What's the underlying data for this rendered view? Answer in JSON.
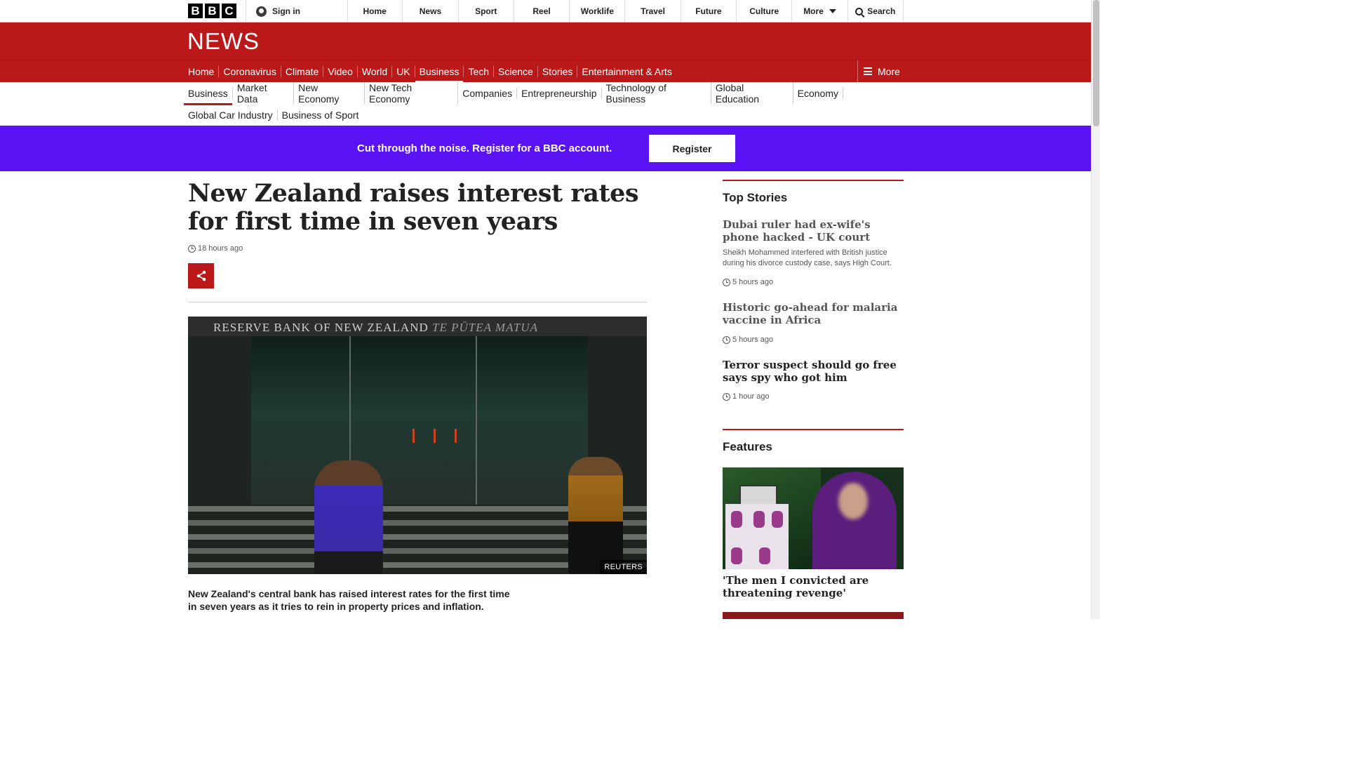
{
  "global_nav": {
    "logo_letters": [
      "B",
      "B",
      "C"
    ],
    "sign_in": "Sign in",
    "items": [
      "Home",
      "News",
      "Sport",
      "Reel",
      "Worklife",
      "Travel",
      "Future",
      "Culture"
    ],
    "more": "More",
    "search": "Search"
  },
  "news": {
    "wordmark": "NEWS",
    "brand_color": "#bb1919",
    "sections": [
      "Home",
      "Coronavirus",
      "Climate",
      "Video",
      "World",
      "UK",
      "Business",
      "Tech",
      "Science",
      "Stories",
      "Entertainment & Arts"
    ],
    "active_section": "Business",
    "more": "More"
  },
  "sub_nav": {
    "row1": [
      "Business",
      "Market Data",
      "New Economy",
      "New Tech Economy",
      "Companies",
      "Entrepreneurship",
      "Technology of Business",
      "Global Education",
      "Economy"
    ],
    "row2": [
      "Global Car Industry",
      "Business of Sport"
    ],
    "active": "Business"
  },
  "promo": {
    "text": "Cut through the noise. Register for a BBC account.",
    "button": "Register",
    "color": "#5a13f4"
  },
  "article": {
    "headline": "New Zealand raises interest rates for first time in seven years",
    "timestamp": "18 hours ago",
    "image_sign": "RESERVE BANK OF NEW ZEALAND",
    "image_sign_maori": "TE PŪTEA MATUA",
    "image_credit": "REUTERS",
    "intro": "New Zealand's central bank has raised interest rates for the first time in seven years as it tries to rein in property prices and inflation."
  },
  "sidebar": {
    "top_stories_title": "Top Stories",
    "stories": [
      {
        "title": "Dubai ruler had ex-wife's phone hacked - UK court",
        "summary": "Sheikh Mohammed interfered with British justice during his divorce custody case, says High Court.",
        "time": "5 hours ago"
      },
      {
        "title": "Historic go-ahead for malaria vaccine in Africa",
        "summary": "",
        "time": "5 hours ago"
      },
      {
        "title": "Terror suspect should go free says spy who got him",
        "summary": "",
        "time": "1 hour ago"
      }
    ],
    "features_title": "Features",
    "features": [
      {
        "title": "'The men I convicted are threatening revenge'"
      }
    ]
  }
}
